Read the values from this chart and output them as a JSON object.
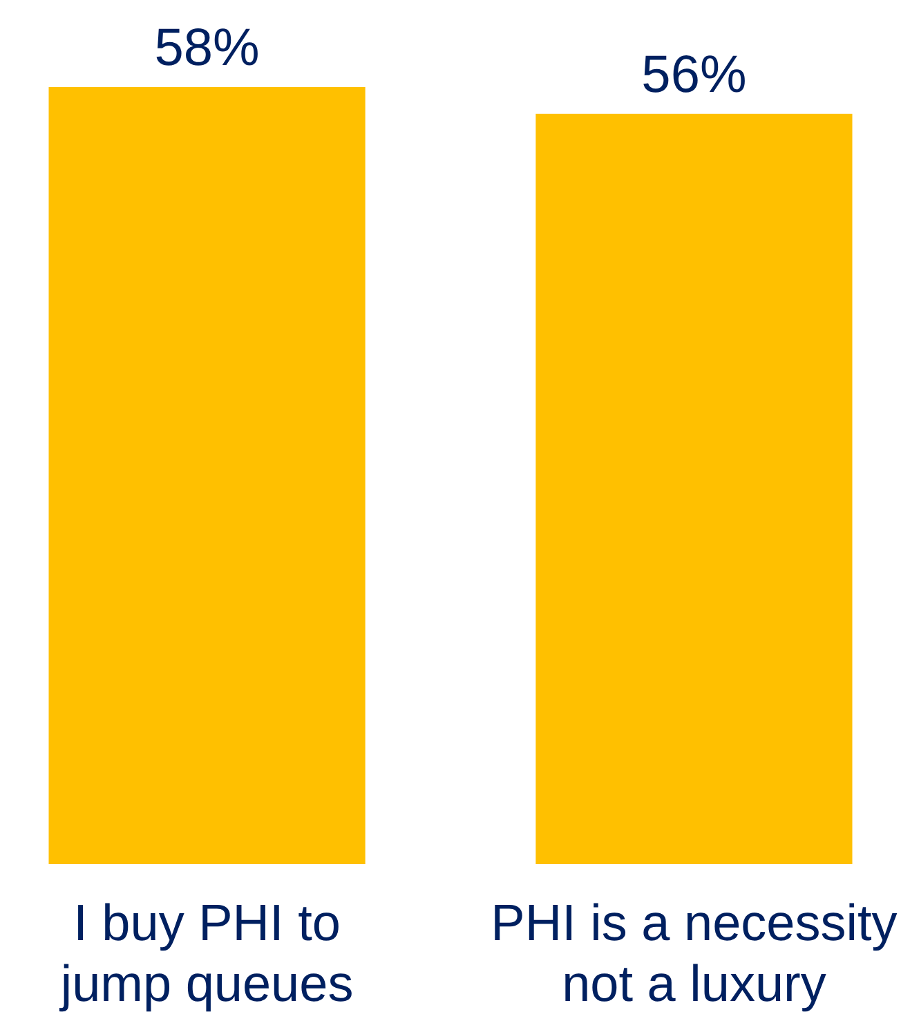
{
  "chart_data": {
    "type": "bar",
    "categories": [
      "I buy PHI to jump queues",
      "PHI is a necessity not a luxury"
    ],
    "values": [
      58,
      56
    ],
    "color": "#ffc000",
    "value_labels": [
      "58%",
      "56%"
    ]
  }
}
